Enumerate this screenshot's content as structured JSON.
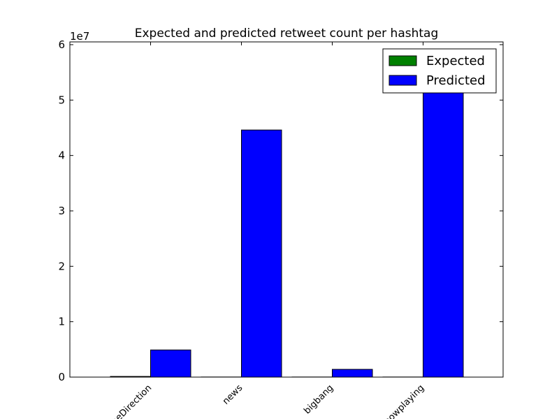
{
  "chart_data": {
    "type": "bar",
    "title": "Expected and predicted retweet count per hashtag",
    "xlabel": "",
    "ylabel": "",
    "categories": [
      "OneDirection",
      "news",
      "bigbang",
      "nowplaying"
    ],
    "series": [
      {
        "name": "Expected",
        "color": "#008000",
        "values": [
          0.12,
          0.02,
          0.02,
          0.02
        ]
      },
      {
        "name": "Predicted",
        "color": "#0000ff",
        "values": [
          4.9,
          44.6,
          1.4,
          51.6
        ]
      }
    ],
    "ylim": [
      0,
      60.5
    ],
    "yticks": [
      "0",
      "1",
      "2",
      "3",
      "4",
      "5",
      "6"
    ],
    "offset_label": "1e7",
    "legend": "top-right",
    "grid": false
  }
}
